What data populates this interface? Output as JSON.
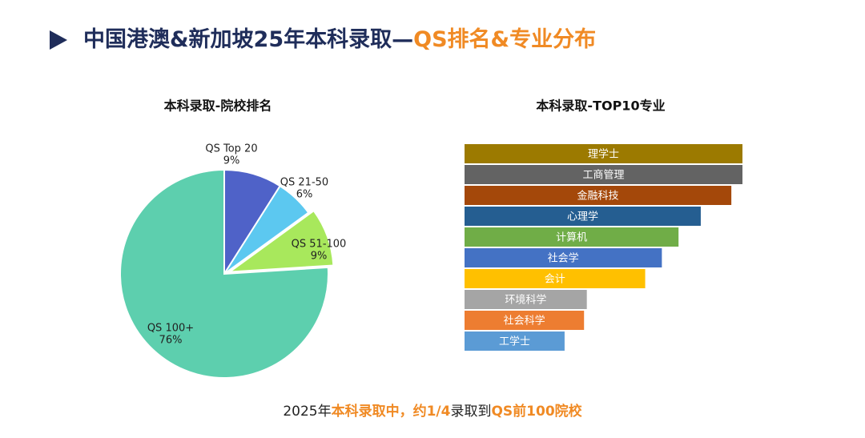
{
  "header": {
    "title_main": "中国港澳&新加坡25年本科录取—",
    "title_highlight": "QS排名&专业分布"
  },
  "chart_data": [
    {
      "type": "pie",
      "title": "本科录取-院校排名",
      "categories": [
        "QS Top 20",
        "QS 21-50",
        "QS 51-100",
        "QS 100+"
      ],
      "values": [
        9,
        6,
        9,
        76
      ],
      "value_labels": [
        "9%",
        "6%",
        "9%",
        "76%"
      ],
      "colors": [
        "#4f62c8",
        "#5cc8f0",
        "#a8e85c",
        "#5dcfae"
      ]
    },
    {
      "type": "hbar",
      "title": "本科录取-TOP10专业",
      "categories": [
        "理学士",
        "工商管理",
        "金融科技",
        "心理学",
        "计算机",
        "社会学",
        "会计",
        "环境科学",
        "社会科学",
        "工学士"
      ],
      "values": [
        100,
        100,
        96,
        85,
        77,
        71,
        65,
        44,
        43,
        36
      ],
      "colors": [
        "#9c7a00",
        "#636363",
        "#a4480a",
        "#255e91",
        "#70ad47",
        "#4472c4",
        "#ffc000",
        "#a5a5a5",
        "#ed7d31",
        "#5b9bd5"
      ],
      "xlim": [
        0,
        100
      ]
    }
  ],
  "footer": {
    "p1": "2025年",
    "p2": "本科录取中，约1/4",
    "p3": "录取到",
    "p4": "QS前100院校"
  }
}
